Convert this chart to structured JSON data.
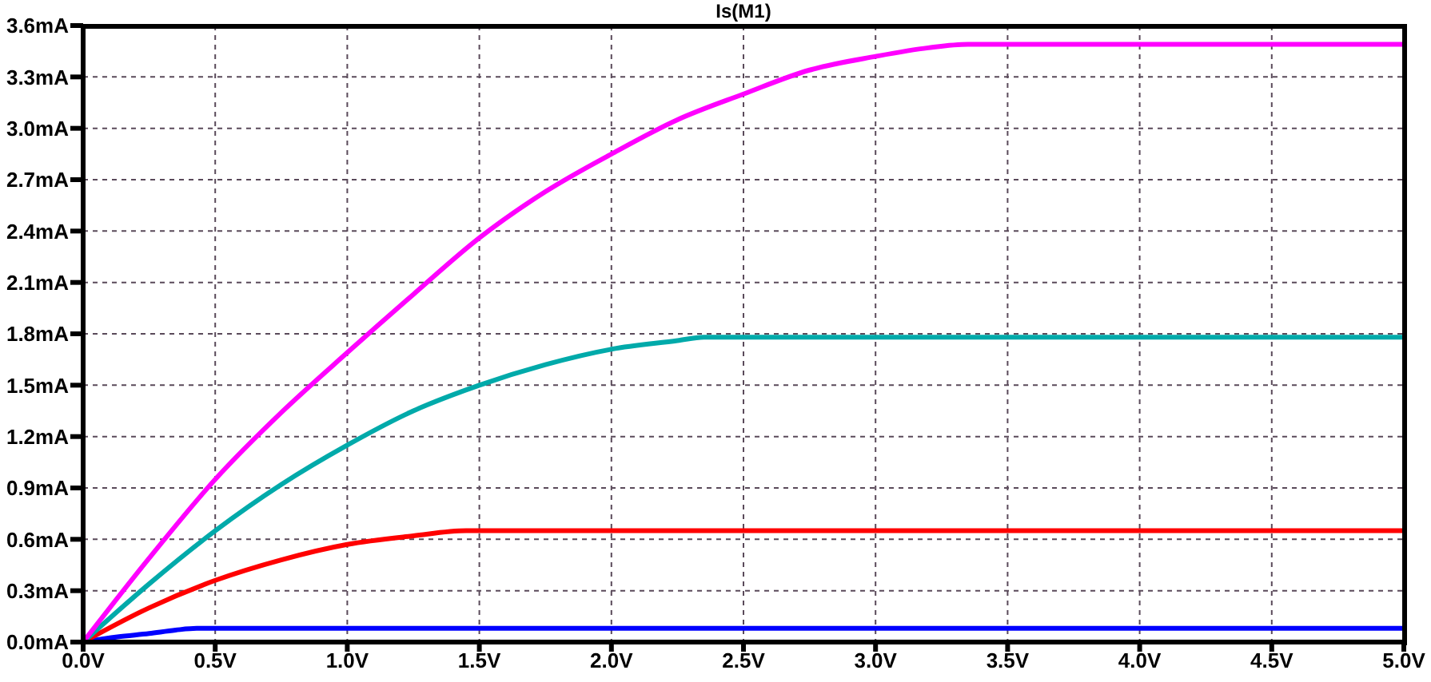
{
  "chart_data": {
    "type": "line",
    "title": "Is(M1)",
    "xlim": [
      0,
      5
    ],
    "ylim": [
      0,
      3.6
    ],
    "xticks": [
      {
        "value": 0,
        "label": "0.0V"
      },
      {
        "value": 0.5,
        "label": "0.5V"
      },
      {
        "value": 1,
        "label": "1.0V"
      },
      {
        "value": 1.5,
        "label": "1.5V"
      },
      {
        "value": 2,
        "label": "2.0V"
      },
      {
        "value": 2.5,
        "label": "2.5V"
      },
      {
        "value": 3,
        "label": "3.0V"
      },
      {
        "value": 3.5,
        "label": "3.5V"
      },
      {
        "value": 4,
        "label": "4.0V"
      },
      {
        "value": 4.5,
        "label": "4.5V"
      },
      {
        "value": 5,
        "label": "5.0V"
      }
    ],
    "yticks": [
      {
        "value": 0,
        "label": "0.0mA"
      },
      {
        "value": 0.3,
        "label": "0.3mA"
      },
      {
        "value": 0.6,
        "label": "0.6mA"
      },
      {
        "value": 0.9,
        "label": "0.9mA"
      },
      {
        "value": 1.2,
        "label": "1.2mA"
      },
      {
        "value": 1.5,
        "label": "1.5mA"
      },
      {
        "value": 1.8,
        "label": "1.8mA"
      },
      {
        "value": 2.1,
        "label": "2.1mA"
      },
      {
        "value": 2.4,
        "label": "2.4mA"
      },
      {
        "value": 2.7,
        "label": "2.7mA"
      },
      {
        "value": 3.0,
        "label": "3.0mA"
      },
      {
        "value": 3.3,
        "label": "3.3mA"
      },
      {
        "value": 3.6,
        "label": "3.6mA"
      }
    ],
    "grid": true,
    "series": [
      {
        "color": "#0000ff",
        "x": [
          0,
          0.13,
          0.25,
          0.35,
          0.43,
          5
        ],
        "values": [
          0,
          0.03,
          0.05,
          0.07,
          0.08,
          0.08
        ]
      },
      {
        "color": "#ff0000",
        "x": [
          0,
          0.25,
          0.5,
          0.75,
          1.0,
          1.25,
          1.45,
          5
        ],
        "values": [
          0,
          0.2,
          0.36,
          0.48,
          0.57,
          0.62,
          0.65,
          0.65
        ]
      },
      {
        "color": "#00aaaa",
        "x": [
          0,
          0.25,
          0.5,
          0.75,
          1.0,
          1.25,
          1.5,
          1.75,
          2.0,
          2.25,
          2.35,
          5
        ],
        "values": [
          0,
          0.34,
          0.65,
          0.92,
          1.15,
          1.35,
          1.5,
          1.62,
          1.71,
          1.76,
          1.78,
          1.78
        ]
      },
      {
        "color": "#ff00ff",
        "x": [
          0,
          0.25,
          0.5,
          0.75,
          1.0,
          1.25,
          1.5,
          1.75,
          2.0,
          2.25,
          2.5,
          2.75,
          3.0,
          3.2,
          3.35,
          5
        ],
        "values": [
          0,
          0.49,
          0.95,
          1.34,
          1.69,
          2.03,
          2.36,
          2.63,
          2.85,
          3.05,
          3.2,
          3.34,
          3.42,
          3.47,
          3.49,
          3.49
        ]
      }
    ]
  }
}
